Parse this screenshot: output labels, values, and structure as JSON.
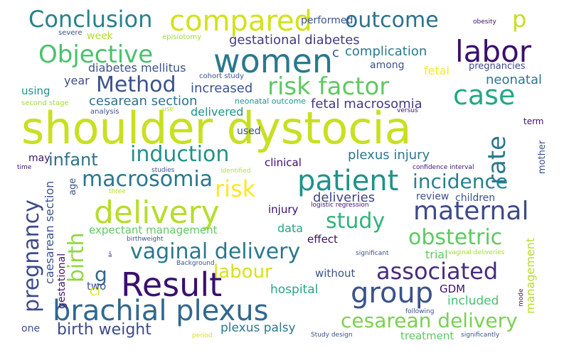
{
  "words": [
    {
      "text": "shoulder dystocia",
      "color": "#c8e020"
    },
    {
      "text": "women",
      "color": "#2a788e"
    },
    {
      "text": "compared",
      "color": "#d2e21b"
    },
    {
      "text": "labor",
      "color": "#3b0f70"
    },
    {
      "text": "Result",
      "color": "#3b0f70"
    },
    {
      "text": "delivery",
      "color": "#b5de2b"
    },
    {
      "text": "brachial plexus",
      "color": "#31688e"
    },
    {
      "text": "patient",
      "color": "#21918c"
    },
    {
      "text": "group",
      "color": "#3b528b"
    },
    {
      "text": "maternal",
      "color": "#3e4a89"
    },
    {
      "text": "associated",
      "color": "#472d7b"
    },
    {
      "text": "risk factor",
      "color": "#5ec962"
    },
    {
      "text": "case",
      "color": "#22a884"
    },
    {
      "text": "Objective",
      "color": "#4ac16d"
    },
    {
      "text": "Conclusion",
      "color": "#26828e"
    },
    {
      "text": "outcome",
      "color": "#2c728e"
    },
    {
      "text": "vaginal delivery",
      "color": "#2a788e"
    },
    {
      "text": "cesarean delivery",
      "color": "#7ad151"
    },
    {
      "text": "Method",
      "color": "#3b528b"
    },
    {
      "text": "induction",
      "color": "#21918c"
    },
    {
      "text": "incidence",
      "color": "#26828e"
    },
    {
      "text": "rate",
      "color": "#2a788e"
    },
    {
      "text": "risk",
      "color": "#fde725"
    },
    {
      "text": "macrosomia",
      "color": "#2a788e"
    },
    {
      "text": "obstetric",
      "color": "#5ec962"
    },
    {
      "text": "study",
      "color": "#2fb47c"
    },
    {
      "text": "pregnancy",
      "color": "#3e4a89"
    },
    {
      "text": "birth",
      "color": "#8fd744"
    },
    {
      "text": "birth weight",
      "color": "#3e4a89"
    },
    {
      "text": "labour",
      "color": "#d8e219"
    },
    {
      "text": "infant",
      "color": "#2c728e"
    },
    {
      "text": "p",
      "color": "#c2df23"
    },
    {
      "text": "g",
      "color": "#31688e"
    },
    {
      "text": "gestational diabetes",
      "color": "#443983"
    },
    {
      "text": "complication",
      "color": "#2a788e"
    },
    {
      "text": "fetal macrosomia",
      "color": "#443983"
    },
    {
      "text": "cesarean section",
      "color": "#2c728e"
    },
    {
      "text": "expectant management",
      "color": "#5ec962"
    },
    {
      "text": "plexus injury",
      "color": "#2a788e"
    },
    {
      "text": "plexus palsy",
      "color": "#2a788e"
    },
    {
      "text": "caesarean section",
      "color": "#3b528b"
    },
    {
      "text": "deliveries",
      "color": "#404688"
    },
    {
      "text": "increased",
      "color": "#3b528b"
    },
    {
      "text": "diabetes mellitus",
      "color": "#3b528b"
    },
    {
      "text": "neonatal",
      "color": "#2a788e"
    },
    {
      "text": "delivered",
      "color": "#21918c"
    },
    {
      "text": "hospital",
      "color": "#22a884"
    },
    {
      "text": "included",
      "color": "#4ac16d"
    },
    {
      "text": "treatment",
      "color": "#5ec962"
    },
    {
      "text": "management",
      "color": "#b5de2b"
    },
    {
      "text": "fetal",
      "color": "#fde725"
    },
    {
      "text": "week",
      "color": "#b5de2b"
    },
    {
      "text": "year",
      "color": "#3e4a89"
    },
    {
      "text": "using",
      "color": "#21918c"
    },
    {
      "text": "among",
      "color": "#3b528b"
    },
    {
      "text": "performed",
      "color": "#3b528b"
    },
    {
      "text": "pregnancies",
      "color": "#3e4a89"
    },
    {
      "text": "clinical",
      "color": "#3b0f70"
    },
    {
      "text": "may",
      "color": "#3b0f70"
    },
    {
      "text": "used",
      "color": "#3b528b"
    },
    {
      "text": "injury",
      "color": "#3b0f70"
    },
    {
      "text": "data",
      "color": "#22a884"
    },
    {
      "text": "effect",
      "color": "#3b0f70"
    },
    {
      "text": "review",
      "color": "#3b528b"
    },
    {
      "text": "trial",
      "color": "#5ec962"
    },
    {
      "text": "GDM",
      "color": "#3b0f70"
    },
    {
      "text": "without",
      "color": "#3b528b"
    },
    {
      "text": "two",
      "color": "#3b528b"
    },
    {
      "text": "CI",
      "color": "#d8e219"
    },
    {
      "text": "one",
      "color": "#3b528b"
    },
    {
      "text": "children",
      "color": "#3b528b"
    },
    {
      "text": "mother",
      "color": "#3b528b"
    },
    {
      "text": "term",
      "color": "#3b0f70"
    },
    {
      "text": "age",
      "color": "#3b528b"
    },
    {
      "text": "gestational",
      "color": "#3b0f70"
    },
    {
      "text": "c",
      "color": "#3b528b"
    },
    {
      "text": "severe",
      "color": "#3b528b"
    },
    {
      "text": "episiotomy",
      "color": "#a0da39"
    },
    {
      "text": "obesity",
      "color": "#3b0f70"
    },
    {
      "text": "cohort study",
      "color": "#3b528b"
    },
    {
      "text": "second stage",
      "color": "#a0da39"
    },
    {
      "text": "analysis",
      "color": "#3b528b"
    },
    {
      "text": "use",
      "color": "#b5de2b"
    },
    {
      "text": "neonatal outcome",
      "color": "#21918c"
    },
    {
      "text": "versus",
      "color": "#3b0f70"
    },
    {
      "text": "time",
      "color": "#3b0f70"
    },
    {
      "text": "studies",
      "color": "#3b528b"
    },
    {
      "text": "identified",
      "color": "#b5de2b"
    },
    {
      "text": "confidence interval",
      "color": "#3b0f70"
    },
    {
      "text": "three",
      "color": "#b5de2b"
    },
    {
      "text": "logistic regression",
      "color": "#3b0f70"
    },
    {
      "text": "birthweight",
      "color": "#3b528b"
    },
    {
      "text": "significant",
      "color": "#3b528b"
    },
    {
      "text": "vaginal deliveries",
      "color": "#a0da39"
    },
    {
      "text": "Background",
      "color": "#3b528b"
    },
    {
      "text": "following",
      "color": "#3b528b"
    },
    {
      "text": "mode",
      "color": "#3b0f70"
    },
    {
      "text": "period",
      "color": "#d8e219"
    },
    {
      "text": "Study design",
      "color": "#3b528b"
    },
    {
      "text": "significantly",
      "color": "#3b528b"
    },
    {
      "text": "å",
      "color": "#3b528b"
    }
  ]
}
